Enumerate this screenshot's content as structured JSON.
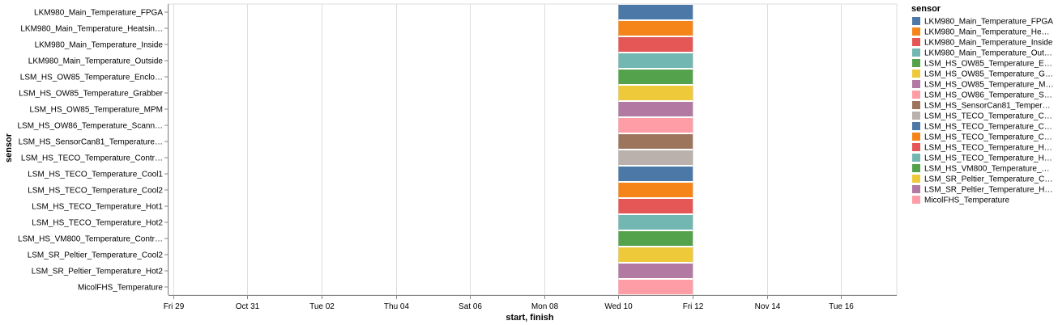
{
  "chart_data": {
    "type": "gantt",
    "xlabel": "start, finish",
    "ylabel": "sensor",
    "x_ticks": [
      "Fri 29",
      "Oct 31",
      "Tue 02",
      "Thu 04",
      "Sat 06",
      "Mon 08",
      "Wed 10",
      "Fri 12",
      "Nov 14",
      "Tue 16"
    ],
    "xlim": [
      "2021-10-28T21:00",
      "2021-11-17T12:00"
    ],
    "grid": true,
    "legend": {
      "title": "sensor",
      "position": "right",
      "labels": [
        "LKM980_Main_Temperature_FPGA",
        "LKM980_Main_Temperature_He…",
        "LKM980_Main_Temperature_Inside",
        "LKM980_Main_Temperature_Out…",
        "LSM_HS_OW85_Temperature_E…",
        "LSM_HS_OW85_Temperature_G…",
        "LSM_HS_OW85_Temperature_M…",
        "LSM_HS_OW86_Temperature_S…",
        "LSM_HS_SensorCan81_Temper…",
        "LSM_HS_TECO_Temperature_C…",
        "LSM_HS_TECO_Temperature_C…",
        "LSM_HS_TECO_Temperature_C…",
        "LSM_HS_TECO_Temperature_H…",
        "LSM_HS_TECO_Temperature_H…",
        "LSM_HS_VM800_Temperature_…",
        "LSM_SR_Peltier_Temperature_C…",
        "LSM_SR_Peltier_Temperature_H…",
        "MicolFHS_Temperature"
      ]
    },
    "series": [
      {
        "name": "LKM980_Main_Temperature_FPGA",
        "start": "2021-11-10",
        "finish": "2021-11-12",
        "color": "#4c78a8"
      },
      {
        "name": "LKM980_Main_Temperature_Heatsin…",
        "start": "2021-11-10",
        "finish": "2021-11-12",
        "color": "#f58518"
      },
      {
        "name": "LKM980_Main_Temperature_Inside",
        "start": "2021-11-10",
        "finish": "2021-11-12",
        "color": "#e45756"
      },
      {
        "name": "LKM980_Main_Temperature_Outside",
        "start": "2021-11-10",
        "finish": "2021-11-12",
        "color": "#72b7b2"
      },
      {
        "name": "LSM_HS_OW85_Temperature_Enclo…",
        "start": "2021-11-10",
        "finish": "2021-11-12",
        "color": "#54a24b"
      },
      {
        "name": "LSM_HS_OW85_Temperature_Grabber",
        "start": "2021-11-10",
        "finish": "2021-11-12",
        "color": "#eeca3b"
      },
      {
        "name": "LSM_HS_OW85_Temperature_MPM",
        "start": "2021-11-10",
        "finish": "2021-11-12",
        "color": "#b279a2"
      },
      {
        "name": "LSM_HS_OW86_Temperature_Scann…",
        "start": "2021-11-10",
        "finish": "2021-11-12",
        "color": "#ff9da6"
      },
      {
        "name": "LSM_HS_SensorCan81_Temperature…",
        "start": "2021-11-10",
        "finish": "2021-11-12",
        "color": "#9d755d"
      },
      {
        "name": "LSM_HS_TECO_Temperature_Contr…",
        "start": "2021-11-10",
        "finish": "2021-11-12",
        "color": "#bab0ac"
      },
      {
        "name": "LSM_HS_TECO_Temperature_Cool1",
        "start": "2021-11-10",
        "finish": "2021-11-12",
        "color": "#4c78a8"
      },
      {
        "name": "LSM_HS_TECO_Temperature_Cool2",
        "start": "2021-11-10",
        "finish": "2021-11-12",
        "color": "#f58518"
      },
      {
        "name": "LSM_HS_TECO_Temperature_Hot1",
        "start": "2021-11-10",
        "finish": "2021-11-12",
        "color": "#e45756"
      },
      {
        "name": "LSM_HS_TECO_Temperature_Hot2",
        "start": "2021-11-10",
        "finish": "2021-11-12",
        "color": "#72b7b2"
      },
      {
        "name": "LSM_HS_VM800_Temperature_Contr…",
        "start": "2021-11-10",
        "finish": "2021-11-12",
        "color": "#54a24b"
      },
      {
        "name": "LSM_SR_Peltier_Temperature_Cool2",
        "start": "2021-11-10",
        "finish": "2021-11-12",
        "color": "#eeca3b"
      },
      {
        "name": "LSM_SR_Peltier_Temperature_Hot2",
        "start": "2021-11-10",
        "finish": "2021-11-12",
        "color": "#b279a2"
      },
      {
        "name": "MicolFHS_Temperature",
        "start": "2021-11-10",
        "finish": "2021-11-12",
        "color": "#ff9da6"
      }
    ]
  }
}
